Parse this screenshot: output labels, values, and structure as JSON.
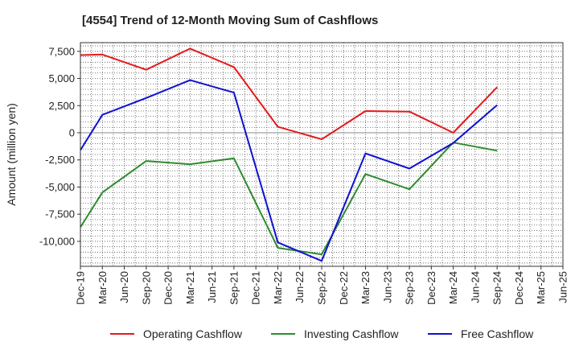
{
  "chart_data": {
    "type": "line",
    "title": "[4554]  Trend of 12-Month Moving Sum of Cashflows",
    "ylabel": "Amount (million yen)",
    "xlabel": "",
    "ylim": [
      -12300,
      8300
    ],
    "yticks": [
      7500,
      5000,
      2500,
      0,
      -2500,
      -5000,
      -7500,
      -10000
    ],
    "ytick_labels": [
      "7,500",
      "5,000",
      "2,500",
      "0",
      "-2,500",
      "-5,000",
      "-7,500",
      "-10,000"
    ],
    "categories": [
      "Dec-19",
      "Mar-20",
      "Jun-20",
      "Sep-20",
      "Dec-20",
      "Mar-21",
      "Jun-21",
      "Sep-21",
      "Dec-21",
      "Mar-22",
      "Jun-22",
      "Sep-22",
      "Dec-22",
      "Mar-23",
      "Jun-23",
      "Sep-23",
      "Dec-23",
      "Mar-24",
      "Jun-24",
      "Sep-24",
      "Dec-24",
      "Mar-25"
    ],
    "x_ticks": [
      "Dec-19",
      "Mar-20",
      "Jun-20",
      "Sep-20",
      "Dec-20",
      "Mar-21",
      "Jun-21",
      "Sep-21",
      "Dec-21",
      "Mar-22",
      "Jun-22",
      "Sep-22",
      "Dec-22",
      "Mar-23",
      "Jun-23",
      "Sep-23",
      "Dec-23",
      "Mar-24",
      "Jun-24",
      "Sep-24",
      "Dec-24",
      "Mar-25",
      "Jun-25"
    ],
    "grid": true,
    "legend_position": "bottom",
    "series": [
      {
        "name": "Operating Cashflow",
        "color": "#e31a1c",
        "points": [
          [
            0,
            7150
          ],
          [
            1,
            7200
          ],
          [
            3,
            5800
          ],
          [
            5,
            7750
          ],
          [
            7,
            6050
          ],
          [
            9,
            550
          ],
          [
            11,
            -600
          ],
          [
            13,
            2000
          ],
          [
            15,
            1950
          ],
          [
            17,
            0
          ],
          [
            19,
            4200
          ]
        ]
      },
      {
        "name": "Investing Cashflow",
        "color": "#2e8b2e",
        "points": [
          [
            0,
            -8700
          ],
          [
            1,
            -5500
          ],
          [
            3,
            -2600
          ],
          [
            5,
            -2900
          ],
          [
            7,
            -2350
          ],
          [
            9,
            -10600
          ],
          [
            11,
            -11200
          ],
          [
            13,
            -3800
          ],
          [
            15,
            -5200
          ],
          [
            17,
            -900
          ],
          [
            19,
            -1650
          ]
        ]
      },
      {
        "name": "Free Cashflow",
        "color": "#1010d0",
        "points": [
          [
            0,
            -1600
          ],
          [
            1,
            1650
          ],
          [
            3,
            3200
          ],
          [
            5,
            4850
          ],
          [
            7,
            3700
          ],
          [
            9,
            -10100
          ],
          [
            11,
            -11800
          ],
          [
            13,
            -1900
          ],
          [
            15,
            -3300
          ],
          [
            17,
            -950
          ],
          [
            19,
            2550
          ]
        ]
      }
    ]
  }
}
